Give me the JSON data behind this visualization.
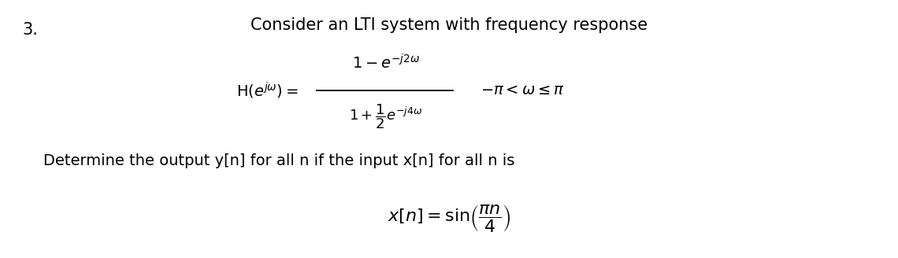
{
  "background_color": "#ffffff",
  "number_text": "3.",
  "title_text": "Consider an LTI system with frequency response",
  "body_text": "Determine the output y[n] for all n if the input x[n] for all n is",
  "title_fontsize": 15,
  "body_fontsize": 14,
  "number_fontsize": 15,
  "eq_fontsize": 15,
  "input_fontsize": 16
}
